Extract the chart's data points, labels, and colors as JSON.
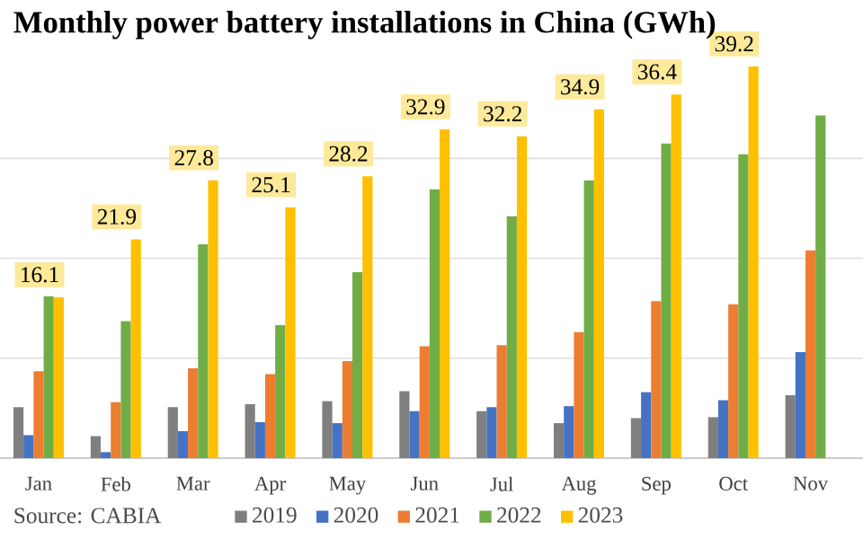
{
  "chart_data": {
    "type": "bar",
    "title": "Monthly power battery installations in China (GWh)",
    "categories": [
      "Jan",
      "Feb",
      "Mar",
      "Apr",
      "May",
      "Jun",
      "Jul",
      "Aug",
      "Sep",
      "Oct",
      "Nov"
    ],
    "series": [
      {
        "name": "2019",
        "color": "#7f7f7f",
        "values": [
          5.1,
          2.2,
          5.1,
          5.4,
          5.7,
          6.7,
          4.7,
          3.5,
          4.0,
          4.1,
          6.3
        ]
      },
      {
        "name": "2020",
        "color": "#4472c4",
        "values": [
          2.3,
          0.6,
          2.7,
          3.6,
          3.5,
          4.7,
          5.1,
          5.2,
          6.6,
          5.8,
          10.6
        ]
      },
      {
        "name": "2021",
        "color": "#ed7d31",
        "values": [
          8.7,
          5.6,
          9.0,
          8.4,
          9.7,
          11.2,
          11.3,
          12.6,
          15.7,
          15.4,
          20.8
        ]
      },
      {
        "name": "2022",
        "color": "#70ad47",
        "values": [
          16.2,
          13.7,
          21.4,
          13.3,
          18.6,
          26.9,
          24.2,
          27.8,
          31.5,
          30.4,
          34.3
        ]
      },
      {
        "name": "2023",
        "color": "#ffc000",
        "values": [
          16.1,
          21.9,
          27.8,
          25.1,
          28.2,
          32.9,
          32.2,
          34.9,
          36.4,
          39.2,
          null
        ],
        "value_labels": [
          "16.1",
          "21.9",
          "27.8",
          "25.1",
          "28.2",
          "32.9",
          "32.2",
          "34.9",
          "36.4",
          "39.2",
          null
        ]
      }
    ],
    "tick_labels": "x",
    "grid": "y",
    "legend": "bottom",
    "annotations": [
      "Source: CABIA"
    ]
  }
}
